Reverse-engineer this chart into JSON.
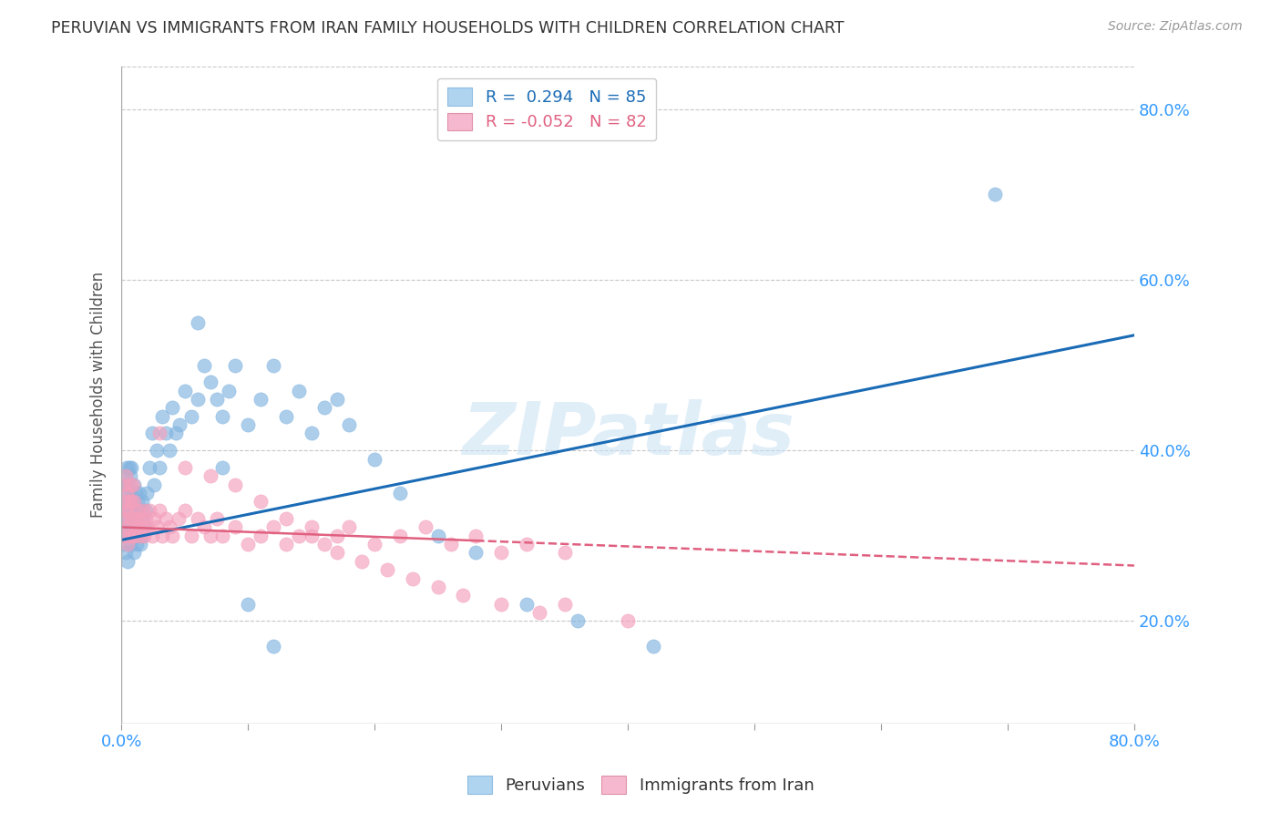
{
  "title": "PERUVIAN VS IMMIGRANTS FROM IRAN FAMILY HOUSEHOLDS WITH CHILDREN CORRELATION CHART",
  "source": "Source: ZipAtlas.com",
  "ylabel": "Family Households with Children",
  "xlim": [
    0.0,
    0.8
  ],
  "ylim": [
    0.08,
    0.85
  ],
  "xticks": [
    0.0,
    0.1,
    0.2,
    0.3,
    0.4,
    0.5,
    0.6,
    0.7,
    0.8
  ],
  "yticks": [
    0.2,
    0.4,
    0.6,
    0.8
  ],
  "legend_blue_r": "0.294",
  "legend_blue_n": "85",
  "legend_pink_r": "-0.052",
  "legend_pink_n": "82",
  "watermark": "ZIPatlas",
  "peruvian_color": "#82b4e0",
  "iran_color": "#f4a0bc",
  "trend_blue_color": "#1a6bb5",
  "trend_pink_color": "#e06080",
  "background_color": "#ffffff",
  "grid_color": "#c8c8c8",
  "axis_label_color": "#3399ff",
  "blue_trend_x0": 0.0,
  "blue_trend_y0": 0.295,
  "blue_trend_x1": 0.8,
  "blue_trend_y1": 0.535,
  "pink_trend_x0": 0.0,
  "pink_trend_y0": 0.31,
  "pink_trend_x1": 0.8,
  "pink_trend_y1": 0.265,
  "peruvians_x": [
    0.001,
    0.001,
    0.002,
    0.002,
    0.002,
    0.003,
    0.003,
    0.003,
    0.004,
    0.004,
    0.004,
    0.005,
    0.005,
    0.005,
    0.006,
    0.006,
    0.006,
    0.007,
    0.007,
    0.007,
    0.008,
    0.008,
    0.008,
    0.009,
    0.009,
    0.01,
    0.01,
    0.01,
    0.011,
    0.011,
    0.012,
    0.012,
    0.013,
    0.013,
    0.014,
    0.014,
    0.015,
    0.015,
    0.016,
    0.016,
    0.017,
    0.018,
    0.019,
    0.02,
    0.022,
    0.024,
    0.026,
    0.028,
    0.03,
    0.032,
    0.035,
    0.038,
    0.04,
    0.043,
    0.046,
    0.05,
    0.055,
    0.06,
    0.065,
    0.07,
    0.075,
    0.08,
    0.085,
    0.09,
    0.1,
    0.11,
    0.12,
    0.13,
    0.14,
    0.15,
    0.16,
    0.17,
    0.18,
    0.2,
    0.22,
    0.25,
    0.28,
    0.32,
    0.36,
    0.42,
    0.06,
    0.08,
    0.1,
    0.12,
    0.69
  ],
  "peruvians_y": [
    0.3,
    0.34,
    0.29,
    0.32,
    0.36,
    0.28,
    0.33,
    0.37,
    0.31,
    0.35,
    0.38,
    0.27,
    0.32,
    0.36,
    0.3,
    0.34,
    0.38,
    0.29,
    0.33,
    0.37,
    0.31,
    0.35,
    0.38,
    0.3,
    0.34,
    0.28,
    0.32,
    0.36,
    0.31,
    0.35,
    0.29,
    0.33,
    0.3,
    0.34,
    0.31,
    0.35,
    0.29,
    0.33,
    0.3,
    0.34,
    0.32,
    0.31,
    0.33,
    0.35,
    0.38,
    0.42,
    0.36,
    0.4,
    0.38,
    0.44,
    0.42,
    0.4,
    0.45,
    0.42,
    0.43,
    0.47,
    0.44,
    0.46,
    0.5,
    0.48,
    0.46,
    0.44,
    0.47,
    0.5,
    0.43,
    0.46,
    0.5,
    0.44,
    0.47,
    0.42,
    0.45,
    0.46,
    0.43,
    0.39,
    0.35,
    0.3,
    0.28,
    0.22,
    0.2,
    0.17,
    0.55,
    0.38,
    0.22,
    0.17,
    0.7
  ],
  "iran_x": [
    0.001,
    0.001,
    0.002,
    0.002,
    0.003,
    0.003,
    0.004,
    0.004,
    0.005,
    0.005,
    0.006,
    0.006,
    0.007,
    0.007,
    0.008,
    0.008,
    0.009,
    0.009,
    0.01,
    0.01,
    0.011,
    0.012,
    0.013,
    0.014,
    0.015,
    0.016,
    0.017,
    0.018,
    0.019,
    0.02,
    0.022,
    0.024,
    0.026,
    0.028,
    0.03,
    0.032,
    0.035,
    0.038,
    0.04,
    0.045,
    0.05,
    0.055,
    0.06,
    0.065,
    0.07,
    0.075,
    0.08,
    0.09,
    0.1,
    0.11,
    0.12,
    0.13,
    0.14,
    0.15,
    0.16,
    0.17,
    0.18,
    0.2,
    0.22,
    0.24,
    0.26,
    0.28,
    0.3,
    0.32,
    0.35,
    0.03,
    0.05,
    0.07,
    0.09,
    0.11,
    0.13,
    0.15,
    0.17,
    0.19,
    0.21,
    0.23,
    0.25,
    0.27,
    0.3,
    0.33,
    0.35,
    0.4
  ],
  "iran_y": [
    0.36,
    0.32,
    0.34,
    0.3,
    0.33,
    0.37,
    0.31,
    0.35,
    0.29,
    0.33,
    0.3,
    0.34,
    0.32,
    0.36,
    0.3,
    0.34,
    0.32,
    0.36,
    0.3,
    0.34,
    0.32,
    0.31,
    0.33,
    0.3,
    0.32,
    0.31,
    0.33,
    0.3,
    0.32,
    0.31,
    0.33,
    0.3,
    0.32,
    0.31,
    0.33,
    0.3,
    0.32,
    0.31,
    0.3,
    0.32,
    0.33,
    0.3,
    0.32,
    0.31,
    0.3,
    0.32,
    0.3,
    0.31,
    0.29,
    0.3,
    0.31,
    0.29,
    0.3,
    0.31,
    0.29,
    0.3,
    0.31,
    0.29,
    0.3,
    0.31,
    0.29,
    0.3,
    0.28,
    0.29,
    0.28,
    0.42,
    0.38,
    0.37,
    0.36,
    0.34,
    0.32,
    0.3,
    0.28,
    0.27,
    0.26,
    0.25,
    0.24,
    0.23,
    0.22,
    0.21,
    0.22,
    0.2
  ]
}
